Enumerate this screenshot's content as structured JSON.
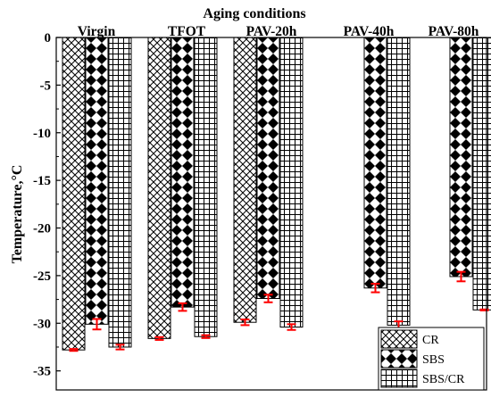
{
  "chart_data": {
    "type": "bar",
    "title": "Aging conditions",
    "xlabel": "",
    "ylabel": "Temperature,°C",
    "categories": [
      "Virgin",
      "TFOT",
      "PAV-20h",
      "PAV-40h",
      "PAV-80h"
    ],
    "ylim": [
      -37,
      0
    ],
    "yticks": [
      0,
      -5,
      -10,
      -15,
      -20,
      -25,
      -30,
      -35
    ],
    "ytick_labels": [
      "0",
      "-5",
      "-10",
      "-15",
      "-20",
      "-25",
      "-30",
      "-35"
    ],
    "grid": false,
    "legend_position": "bottom-right",
    "series": [
      {
        "name": "CR",
        "pattern": "crosshatch",
        "values": [
          -32.8,
          -31.6,
          -29.9,
          null,
          null
        ],
        "errors": [
          0.1,
          0.15,
          0.3,
          null,
          null
        ]
      },
      {
        "name": "SBS",
        "pattern": "diamond",
        "values": [
          -30.1,
          -28.3,
          -27.4,
          -26.3,
          -25.1
        ],
        "errors": [
          0.55,
          0.4,
          0.4,
          0.45,
          0.5
        ]
      },
      {
        "name": "SBS/CR",
        "pattern": "grid",
        "values": [
          -32.5,
          -31.4,
          -30.4,
          -30.2,
          -28.6
        ],
        "errors": [
          0.25,
          0.15,
          0.3,
          0.4,
          0.05
        ]
      }
    ],
    "error_bar_color": "#ff0000"
  }
}
